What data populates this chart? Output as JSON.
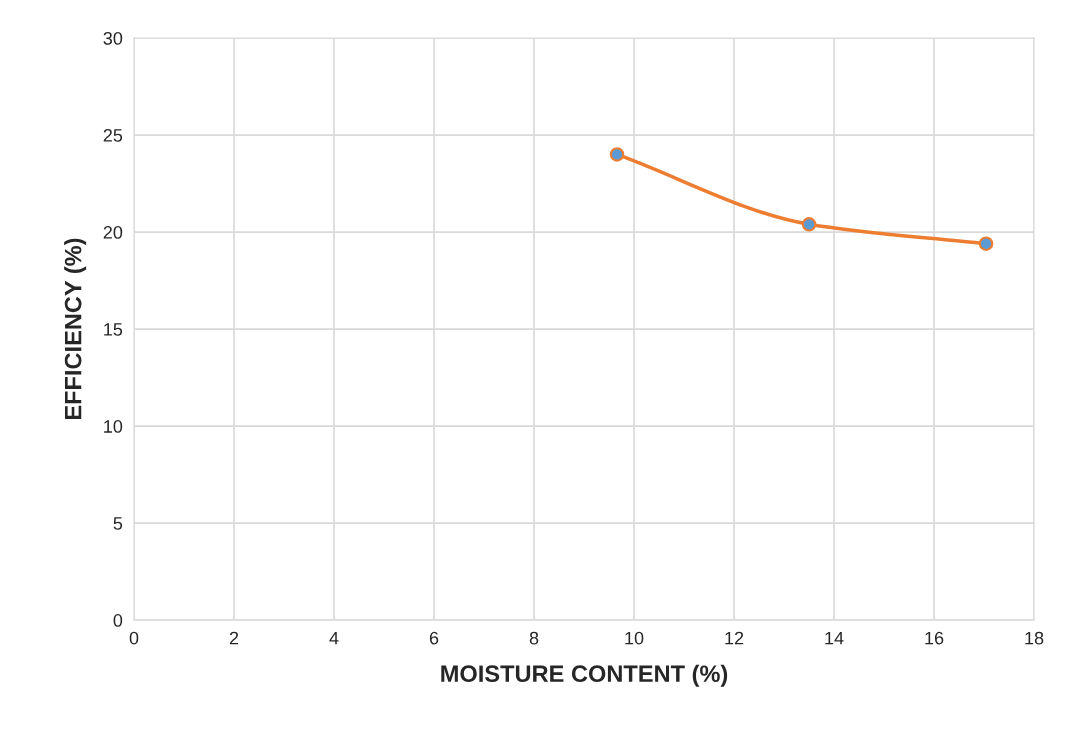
{
  "chart_data": {
    "type": "line",
    "xlabel": "MOISTURE CONTENT (%)",
    "ylabel": "EFFICIENCY (%)",
    "xlim": [
      0,
      18
    ],
    "xticks": [
      0,
      2,
      4,
      6,
      8,
      10,
      12,
      14,
      16,
      18
    ],
    "ylim": [
      0,
      30
    ],
    "yticks": [
      0,
      5,
      10,
      15,
      20,
      25,
      30
    ],
    "grid": true,
    "marker": "circle",
    "line_style": "solid",
    "series": [
      {
        "color": "#ed7d31",
        "colors": [
          "#5b9bd5",
          "#5b9bd5",
          "#5b9bd5"
        ],
        "x": [
          9.66,
          13.5,
          17.04
        ],
        "values": [
          24.0,
          20.4,
          19.4
        ]
      }
    ]
  }
}
